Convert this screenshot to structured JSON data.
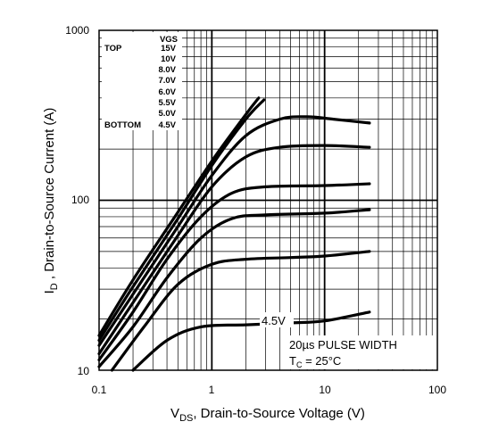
{
  "chart_data": {
    "type": "line",
    "title": "",
    "x_scale": "log",
    "y_scale": "log",
    "xlim": [
      0.1,
      100
    ],
    "ylim": [
      10,
      1000
    ],
    "grid": true,
    "x_ticks": [
      "0.1",
      "1",
      "10",
      "100"
    ],
    "y_ticks": [
      "10",
      "100",
      "1000"
    ],
    "xlabel": {
      "main": "V",
      "sub": "DS",
      "rest": ", Drain-to-Source Voltage (V)"
    },
    "ylabel": {
      "main": "I",
      "sub": "D",
      "rest": " , Drain-to-Source Current (A)"
    },
    "legend": {
      "header": "VGS",
      "top_label": "TOP",
      "bottom_label": "BOTTOM",
      "entries": [
        "15V",
        "10V",
        "8.0V",
        "7.0V",
        "6.0V",
        "5.5V",
        "5.0V",
        "4.5V"
      ]
    },
    "curve_annotation": "4.5V",
    "notes": {
      "pulse_line": "20µs PULSE WIDTH",
      "temp_main": "T",
      "temp_sub": "C",
      "temp_rest": " = 25°C"
    },
    "series": [
      {
        "vgs": "15V",
        "points": [
          [
            0.1,
            16
          ],
          [
            0.2,
            34
          ],
          [
            0.5,
            85
          ],
          [
            1,
            170
          ],
          [
            2,
            320
          ],
          [
            2.6,
            400
          ]
        ]
      },
      {
        "vgs": "10V",
        "points": [
          [
            0.1,
            15
          ],
          [
            0.2,
            31
          ],
          [
            0.5,
            78
          ],
          [
            1,
            160
          ],
          [
            2,
            300
          ],
          [
            2.9,
            390
          ]
        ]
      },
      {
        "vgs": "8.0V",
        "points": [
          [
            0.1,
            14
          ],
          [
            0.2,
            28
          ],
          [
            0.5,
            70
          ],
          [
            1,
            140
          ],
          [
            2,
            240
          ],
          [
            4,
            300
          ],
          [
            7,
            310
          ],
          [
            12,
            300
          ],
          [
            25,
            285
          ]
        ]
      },
      {
        "vgs": "7.0V",
        "points": [
          [
            0.1,
            12.5
          ],
          [
            0.2,
            25
          ],
          [
            0.5,
            62
          ],
          [
            1,
            120
          ],
          [
            2,
            180
          ],
          [
            4,
            205
          ],
          [
            10,
            210
          ],
          [
            25,
            205
          ]
        ]
      },
      {
        "vgs": "6.0V",
        "points": [
          [
            0.1,
            11.5
          ],
          [
            0.2,
            22
          ],
          [
            0.4,
            45
          ],
          [
            0.8,
            80
          ],
          [
            1.5,
            110
          ],
          [
            3,
            120
          ],
          [
            10,
            122
          ],
          [
            25,
            125
          ]
        ]
      },
      {
        "vgs": "5.5V",
        "points": [
          [
            0.1,
            10.5
          ],
          [
            0.2,
            18
          ],
          [
            0.4,
            35
          ],
          [
            0.8,
            60
          ],
          [
            1.5,
            78
          ],
          [
            3,
            82
          ],
          [
            10,
            84
          ],
          [
            25,
            88
          ]
        ]
      },
      {
        "vgs": "5.0V",
        "points": [
          [
            0.13,
            10
          ],
          [
            0.25,
            18
          ],
          [
            0.5,
            32
          ],
          [
            1,
            42
          ],
          [
            2,
            45
          ],
          [
            5,
            46
          ],
          [
            10,
            47
          ],
          [
            25,
            50
          ]
        ]
      },
      {
        "vgs": "4.5V",
        "points": [
          [
            0.2,
            10
          ],
          [
            0.4,
            15
          ],
          [
            0.8,
            18
          ],
          [
            2,
            18.5
          ],
          [
            5,
            19
          ],
          [
            10,
            19.5
          ],
          [
            25,
            22
          ]
        ]
      }
    ]
  }
}
